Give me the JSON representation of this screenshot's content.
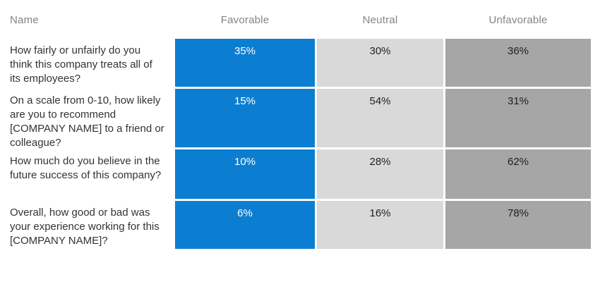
{
  "table": {
    "headers": {
      "name": "Name",
      "favorable": "Favorable",
      "neutral": "Neutral",
      "unfavorable": "Unfavorable"
    },
    "rows": [
      {
        "name": "How fairly or unfairly do you think this company treats all of its employees?",
        "favorable": "35%",
        "neutral": "30%",
        "unfavorable": "36%"
      },
      {
        "name": "On a scale from 0-10, how likely are you to recommend [COMPANY NAME] to a friend or colleague?",
        "favorable": "15%",
        "neutral": "54%",
        "unfavorable": "31%"
      },
      {
        "name": "How much do you believe in the future success of this company?",
        "favorable": "10%",
        "neutral": "28%",
        "unfavorable": "62%"
      },
      {
        "name": "Overall, how good or bad was your experience working for this [COMPANY NAME]?",
        "favorable": "6%",
        "neutral": "16%",
        "unfavorable": "78%"
      }
    ]
  },
  "colors": {
    "favorable": "#0c7ed1",
    "neutral": "#d9d9d9",
    "unfavorable": "#a6a6a6",
    "header_text": "#848484",
    "question_text": "#333333"
  },
  "chart_data": {
    "type": "table",
    "title": "",
    "columns": [
      "Name",
      "Favorable",
      "Neutral",
      "Unfavorable"
    ],
    "categories": [
      "How fairly or unfairly do you think this company treats all of its employees?",
      "On a scale from 0-10, how likely are you to recommend [COMPANY NAME] to a friend or colleague?",
      "How much do you believe in the future success of this company?",
      "Overall, how good or bad was your experience working for this [COMPANY NAME]?"
    ],
    "series": [
      {
        "name": "Favorable",
        "values": [
          35,
          15,
          10,
          6
        ]
      },
      {
        "name": "Neutral",
        "values": [
          30,
          54,
          28,
          16
        ]
      },
      {
        "name": "Unfavorable",
        "values": [
          36,
          31,
          62,
          78
        ]
      }
    ],
    "value_unit": "%",
    "legend_position": "top",
    "grid": false
  }
}
